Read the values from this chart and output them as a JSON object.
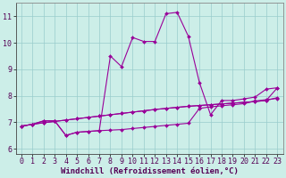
{
  "xlabel": "Windchill (Refroidissement éolien,°C)",
  "bg_color": "#cceee8",
  "grid_color": "#99cccc",
  "line_color": "#990099",
  "xlim_min": -0.5,
  "xlim_max": 23.5,
  "ylim_min": 5.8,
  "ylim_max": 11.5,
  "xticks": [
    0,
    1,
    2,
    3,
    4,
    5,
    6,
    7,
    8,
    9,
    10,
    11,
    12,
    13,
    14,
    15,
    16,
    17,
    18,
    19,
    20,
    21,
    22,
    23
  ],
  "yticks": [
    6,
    7,
    8,
    9,
    10,
    11
  ],
  "line1_x": [
    0,
    1,
    2,
    3,
    4,
    5,
    6,
    7,
    8,
    9,
    10,
    11,
    12,
    13,
    14,
    15,
    16,
    17,
    18,
    19,
    20,
    21,
    22,
    23
  ],
  "line1_y": [
    6.85,
    6.92,
    6.98,
    7.03,
    7.08,
    7.13,
    7.18,
    7.23,
    7.28,
    7.33,
    7.38,
    7.43,
    7.48,
    7.52,
    7.56,
    7.6,
    7.63,
    7.66,
    7.69,
    7.72,
    7.75,
    7.78,
    7.82,
    8.3
  ],
  "line2_x": [
    0,
    1,
    2,
    3,
    4,
    5,
    6,
    7,
    8,
    9,
    10,
    11,
    12,
    13,
    14,
    15,
    16,
    17,
    18,
    19,
    20,
    21,
    22,
    23
  ],
  "line2_y": [
    6.85,
    6.92,
    6.98,
    7.03,
    7.08,
    7.13,
    7.18,
    7.23,
    7.28,
    7.33,
    7.38,
    7.43,
    7.48,
    7.52,
    7.56,
    7.6,
    7.63,
    7.66,
    7.69,
    7.72,
    7.75,
    7.78,
    7.82,
    7.93
  ],
  "line3_x": [
    0,
    1,
    2,
    3,
    4,
    5,
    6,
    7,
    8,
    9,
    10,
    11,
    12,
    13,
    14,
    15,
    16,
    17,
    18,
    19,
    20,
    21,
    22,
    23
  ],
  "line3_y": [
    6.85,
    6.92,
    7.05,
    7.05,
    6.5,
    6.62,
    6.65,
    6.68,
    6.7,
    6.72,
    6.76,
    6.8,
    6.84,
    6.88,
    6.92,
    6.96,
    7.52,
    7.58,
    7.62,
    7.66,
    7.7,
    7.8,
    7.85,
    7.9
  ],
  "line4_x": [
    0,
    1,
    2,
    3,
    4,
    5,
    6,
    7,
    8,
    9,
    10,
    11,
    12,
    13,
    14,
    15,
    16,
    17,
    18,
    19,
    20,
    21,
    22,
    23
  ],
  "line4_y": [
    6.85,
    6.92,
    7.05,
    7.05,
    6.5,
    6.62,
    6.65,
    6.68,
    9.5,
    9.1,
    10.2,
    10.05,
    10.05,
    11.1,
    11.15,
    10.25,
    8.5,
    7.28,
    7.82,
    7.82,
    7.88,
    7.95,
    8.25,
    8.3
  ],
  "xlabel_fontsize": 6.5,
  "tick_fontsize": 6.0,
  "marker_size": 2.0,
  "line_width": 0.8
}
